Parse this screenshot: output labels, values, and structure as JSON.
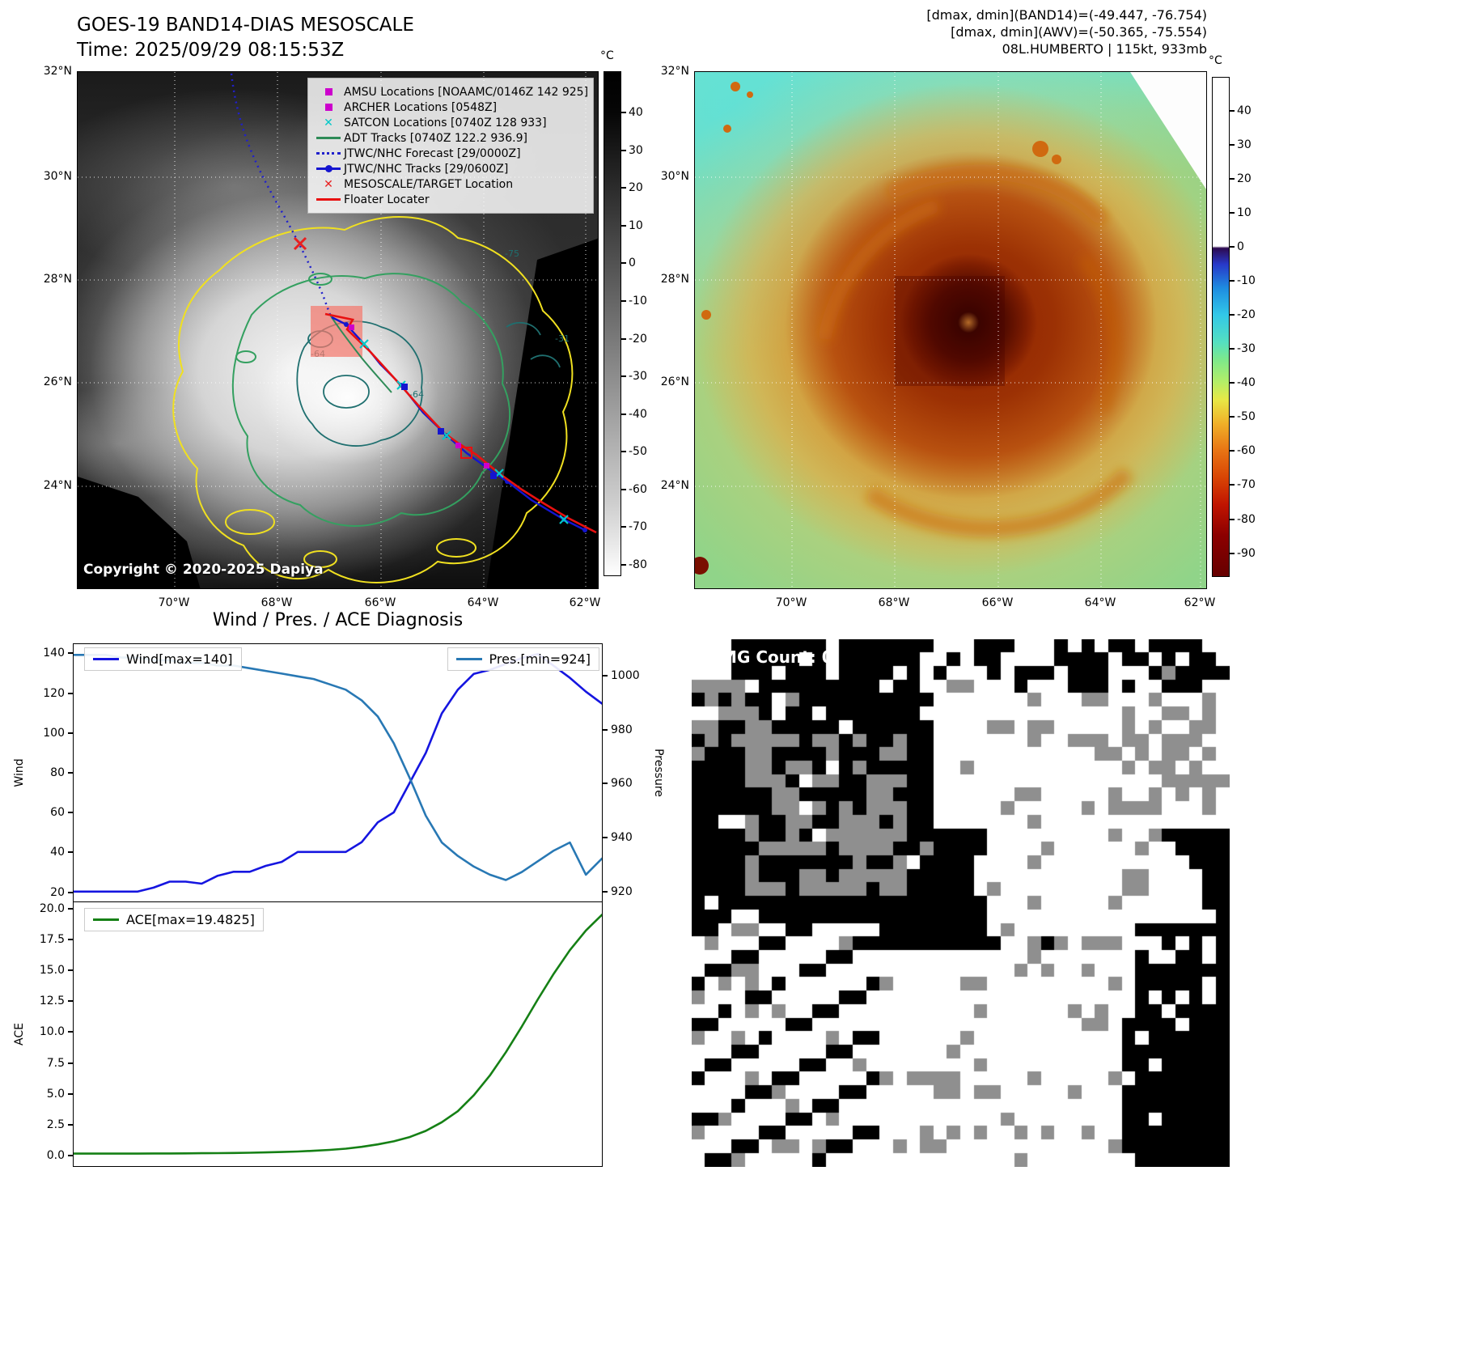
{
  "top_left": {
    "title": "GOES-19 BAND14-DIAS MESOSCALE",
    "time": "Time: 2025/09/29 08:15:53Z",
    "copyright": "Copyright © 2020-2025 Dapiya",
    "colorbar": {
      "unit": "°C",
      "ticks": [
        40,
        30,
        20,
        10,
        0,
        -10,
        -20,
        -30,
        -40,
        -50,
        -60,
        -70,
        -80
      ]
    },
    "lat_labels": [
      "32°N",
      "30°N",
      "28°N",
      "26°N",
      "24°N"
    ],
    "lon_labels": [
      "70°W",
      "68°W",
      "66°W",
      "64°W",
      "62°W"
    ],
    "contour_labels": [
      "-64",
      "-64",
      "-75",
      "-31"
    ],
    "legend": [
      {
        "marker": "square",
        "color": "#cc00cc",
        "label": "AMSU Locations [NOAAMC/0146Z 142 925]"
      },
      {
        "marker": "square",
        "color": "#cc00cc",
        "label": "ARCHER Locations [0548Z]"
      },
      {
        "marker": "x",
        "color": "#00c8c8",
        "label": "SATCON Locations [0740Z 128 933]"
      },
      {
        "marker": "line",
        "color": "#2e8b57",
        "label": "ADT Tracks [0740Z 122.2 936.9]"
      },
      {
        "marker": "dotted",
        "color": "#2020cc",
        "label": "JTWC/NHC Forecast [29/0000Z]"
      },
      {
        "marker": "line-dot",
        "color": "#1515d0",
        "label": "JTWC/NHC Tracks [29/0600Z]"
      },
      {
        "marker": "x",
        "color": "#e82020",
        "label": "MESOSCALE/TARGET Location"
      },
      {
        "marker": "line",
        "color": "#e81010",
        "label": "Floater Locater"
      }
    ]
  },
  "top_right": {
    "header_lines": [
      "[dmax, dmin](BAND14)=(-49.447, -76.754)",
      "[dmax, dmin](AWV)=(-50.365, -75.554)",
      "08L.HUMBERTO | 115kt, 933mb"
    ],
    "colorbar": {
      "unit": "°C",
      "ticks": [
        40,
        30,
        20,
        10,
        0,
        -10,
        -20,
        -30,
        -40,
        -50,
        -60,
        -70,
        -80,
        -90
      ]
    },
    "lat_labels": [
      "32°N",
      "30°N",
      "28°N",
      "26°N",
      "24°N"
    ],
    "lon_labels": [
      "70°W",
      "68°W",
      "66°W",
      "64°W",
      "62°W"
    ]
  },
  "bottom_left": {
    "title": "Wind / Pres. / ACE Diagnosis"
  },
  "bottom_right": {
    "wmg_count_label": "WMG Count: 0"
  },
  "chart_data": [
    {
      "type": "line",
      "title": "Wind / Pres. / ACE Diagnosis",
      "ylabel_left": "Wind",
      "ylabel_right": "Pressure",
      "ylim_left": [
        15,
        145
      ],
      "ylim_right": [
        916,
        1012
      ],
      "yticks_left": [
        "20",
        "40",
        "60",
        "80",
        "100",
        "120",
        "140"
      ],
      "yticks_right": [
        "920",
        "940",
        "960",
        "980",
        "1000"
      ],
      "grid": false,
      "legend": [
        {
          "name": "Wind[max=140]",
          "color": "#1515e0",
          "position": "upper left"
        },
        {
          "name": "Pres.[min=924]",
          "color": "#2878b4",
          "position": "upper right"
        }
      ],
      "series": [
        {
          "name": "Wind",
          "axis": "left",
          "color": "#1515e0",
          "values": [
            20,
            20,
            20,
            20,
            20,
            22,
            25,
            25,
            24,
            28,
            30,
            30,
            33,
            35,
            40,
            40,
            40,
            40,
            45,
            55,
            60,
            75,
            90,
            110,
            122,
            130,
            132,
            135,
            138,
            140,
            134,
            128,
            121,
            115
          ]
        },
        {
          "name": "Pressure",
          "axis": "right",
          "color": "#2878b4",
          "values": [
            1008,
            1008,
            1008,
            1007,
            1007,
            1006,
            1006,
            1005,
            1005,
            1004,
            1004,
            1003,
            1002,
            1001,
            1000,
            999,
            997,
            995,
            991,
            985,
            975,
            962,
            948,
            938,
            933,
            929,
            926,
            924,
            927,
            931,
            935,
            938,
            926,
            932
          ]
        }
      ]
    },
    {
      "type": "line",
      "ylabel_left": "ACE",
      "ylim_left": [
        -0.9,
        20.5
      ],
      "yticks_left": [
        "0.0",
        "2.5",
        "5.0",
        "7.5",
        "10.0",
        "12.5",
        "15.0",
        "17.5",
        "20.0"
      ],
      "grid": false,
      "legend": [
        {
          "name": "ACE[max=19.4825]",
          "color": "#158015",
          "position": "upper left"
        }
      ],
      "series": [
        {
          "name": "ACE",
          "axis": "left",
          "color": "#158015",
          "values": [
            0.05,
            0.05,
            0.05,
            0.05,
            0.05,
            0.06,
            0.06,
            0.07,
            0.08,
            0.09,
            0.1,
            0.12,
            0.15,
            0.18,
            0.22,
            0.28,
            0.35,
            0.45,
            0.6,
            0.8,
            1.05,
            1.4,
            1.9,
            2.6,
            3.5,
            4.8,
            6.4,
            8.3,
            10.4,
            12.6,
            14.7,
            16.6,
            18.2,
            19.48
          ]
        }
      ]
    }
  ]
}
